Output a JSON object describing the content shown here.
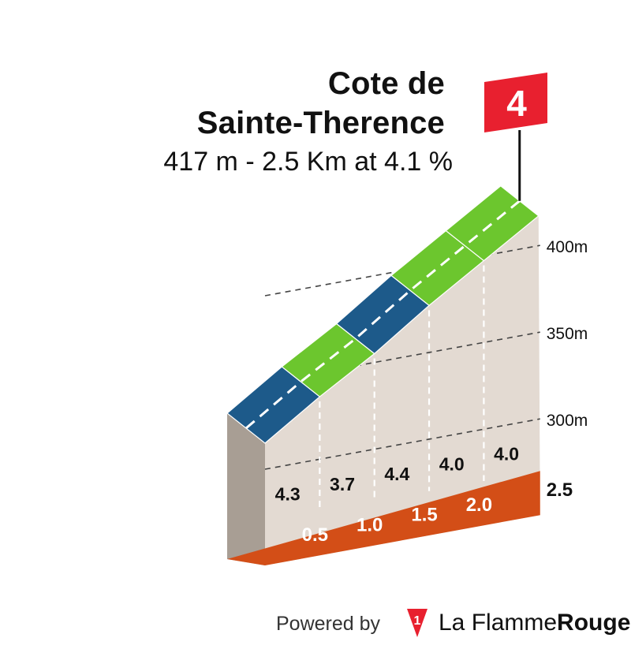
{
  "header": {
    "title_line1": "Cote de",
    "title_line2": "Sainte-Therence",
    "subtitle": "417 m - 2.5 Km at 4.1 %"
  },
  "flag": {
    "category": "4",
    "color": "#e8202f"
  },
  "footer": {
    "powered_by": "Powered by",
    "brand_light": "La Flamme",
    "brand_bold": "Rouge",
    "logo_number": "1"
  },
  "chart_data": {
    "type": "area",
    "title": "Cote de Sainte-Therence",
    "subtitle": "417 m - 2.5 Km at 4.1 %",
    "x_unit": "km",
    "y_unit": "m",
    "xlim": [
      0,
      2.5
    ],
    "ylim": [
      270,
      420
    ],
    "y_ticks": [
      {
        "value": 300,
        "label": "300m"
      },
      {
        "value": 350,
        "label": "350m"
      },
      {
        "value": 400,
        "label": "400m"
      }
    ],
    "x_ticks": [
      {
        "value": 0.5,
        "label": "0.5"
      },
      {
        "value": 1.0,
        "label": "1.0"
      },
      {
        "value": 1.5,
        "label": "1.5"
      },
      {
        "value": 2.0,
        "label": "2.0"
      },
      {
        "value": 2.5,
        "label": "2.5"
      }
    ],
    "elevation_points": [
      {
        "km": 0.0,
        "alt": 315
      },
      {
        "km": 0.5,
        "alt": 336
      },
      {
        "km": 1.0,
        "alt": 355
      },
      {
        "km": 1.5,
        "alt": 377
      },
      {
        "km": 2.0,
        "alt": 397
      },
      {
        "km": 2.5,
        "alt": 417
      }
    ],
    "segments": [
      {
        "from": 0.0,
        "to": 0.5,
        "gradient": "4.3",
        "color": "#1d5a8a"
      },
      {
        "from": 0.5,
        "to": 1.0,
        "gradient": "3.7",
        "color": "#6cc62e"
      },
      {
        "from": 1.0,
        "to": 1.5,
        "gradient": "4.4",
        "color": "#1d5a8a"
      },
      {
        "from": 1.5,
        "to": 2.0,
        "gradient": "4.0",
        "color": "#6cc62e"
      },
      {
        "from": 2.0,
        "to": 2.5,
        "gradient": "4.0",
        "color": "#6cc62e"
      }
    ],
    "colors": {
      "wall": "#e3dad2",
      "left_wall": "#a89e94",
      "base": "#d34e17",
      "grid": "#444444"
    },
    "grid": true
  }
}
